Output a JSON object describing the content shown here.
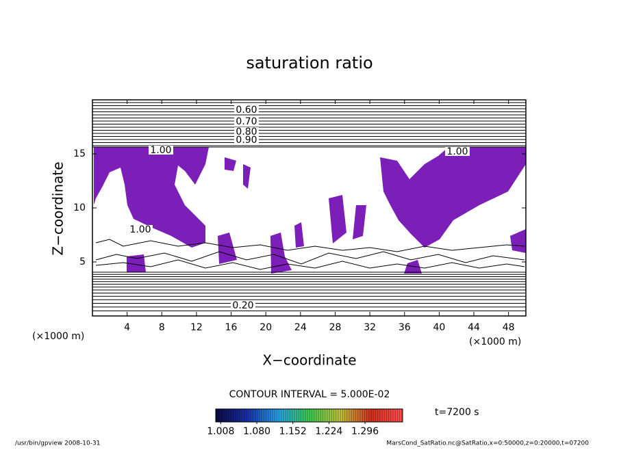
{
  "chart_data": {
    "type": "contour",
    "title": "saturation ratio",
    "xlabel": "X−coordinate",
    "ylabel": "Z−coordinate",
    "xunit": "(×1000 m)",
    "yunit": "(×1000 m)",
    "xlim": [
      0,
      50
    ],
    "ylim": [
      0,
      20
    ],
    "xticks": [
      4,
      8,
      12,
      16,
      20,
      24,
      28,
      32,
      36,
      40,
      44,
      48
    ],
    "yticks": [
      5,
      10,
      15
    ],
    "contour_labels": [
      {
        "value": 0.6,
        "label": "0.60"
      },
      {
        "value": 0.7,
        "label": "0.70"
      },
      {
        "value": 0.8,
        "label": "0.80"
      },
      {
        "value": 0.9,
        "label": "0.90"
      },
      {
        "value": 1,
        "label": "1.00"
      },
      {
        "value": 1,
        "label": "1.00"
      },
      {
        "value": 1,
        "label": "1.00"
      },
      {
        "value": 0.2,
        "label": "0.20"
      }
    ],
    "region_color": "#7b1fb8",
    "contour_interval": "CONTOUR INTERVAL = 5.000E-02",
    "time": "t=7200 s",
    "colorbar": {
      "lim": [
        0.998,
        1.371
      ],
      "ticks": [
        1.008,
        {
          "value": 1.08,
          "label": "1.080"
        },
        1.152,
        1.224,
        1.296
      ],
      "colors": [
        "#0a0a40",
        "#1a2fa8",
        "#2aa0e0",
        "#3ec850",
        "#c0c040",
        "#d03020",
        "#ff5050"
      ]
    },
    "footer_left": "/usr/bin/gpview  2008-10-31",
    "footer_right": "MarsCond_SatRatio.nc@SatRatio,x=0:50000,z=0:20000,t=07200"
  }
}
